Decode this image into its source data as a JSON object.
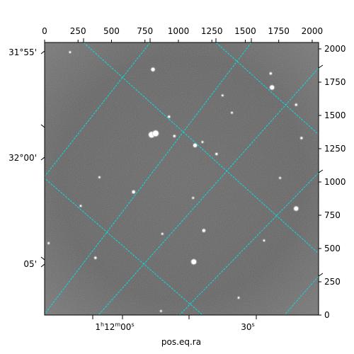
{
  "chart_data": {
    "type": "image",
    "title": "",
    "xlabel": "pos.eq.ra",
    "ylabel": "",
    "pixel_axes": {
      "top_ticks": [
        0,
        250,
        500,
        750,
        1000,
        1250,
        1500,
        1750,
        2000
      ],
      "right_ticks": [
        0,
        250,
        500,
        750,
        1000,
        1250,
        1500,
        1750,
        2000
      ],
      "xlim": [
        0,
        2048
      ],
      "ylim": [
        0,
        2048
      ]
    },
    "world_axes": {
      "ra_labels": [
        "1h12m00s",
        "30s"
      ],
      "ra_label_parts": [
        {
          "h": "1",
          "m": "12",
          "s": "00"
        },
        {
          "h": "",
          "m": "",
          "s": "30"
        }
      ],
      "dec_labels": [
        "31°55'",
        "32°00'",
        "05'"
      ]
    },
    "grid": true,
    "grid_color": "#00e5e5",
    "image_colormap": "gray",
    "sources": [
      {
        "x": 810,
        "y": 1845,
        "r": 2.5
      },
      {
        "x": 1700,
        "y": 1710,
        "r": 3
      },
      {
        "x": 1690,
        "y": 1815,
        "r": 1.5
      },
      {
        "x": 1880,
        "y": 1580,
        "r": 1.5
      },
      {
        "x": 800,
        "y": 1355,
        "r": 4
      },
      {
        "x": 830,
        "y": 1365,
        "r": 4
      },
      {
        "x": 930,
        "y": 1490,
        "r": 1.5
      },
      {
        "x": 970,
        "y": 1345,
        "r": 1.5
      },
      {
        "x": 1125,
        "y": 1275,
        "r": 2.5
      },
      {
        "x": 1180,
        "y": 1300,
        "r": 1.2
      },
      {
        "x": 1285,
        "y": 1210,
        "r": 1.5
      },
      {
        "x": 1330,
        "y": 1650,
        "r": 1.2
      },
      {
        "x": 1920,
        "y": 1330,
        "r": 1.5
      },
      {
        "x": 665,
        "y": 925,
        "r": 2
      },
      {
        "x": 410,
        "y": 1035,
        "r": 1.2
      },
      {
        "x": 270,
        "y": 820,
        "r": 1.2
      },
      {
        "x": 1190,
        "y": 635,
        "r": 2
      },
      {
        "x": 1880,
        "y": 800,
        "r": 3
      },
      {
        "x": 1115,
        "y": 400,
        "r": 3.5
      },
      {
        "x": 880,
        "y": 610,
        "r": 1.2
      },
      {
        "x": 1640,
        "y": 560,
        "r": 1.2
      },
      {
        "x": 30,
        "y": 540,
        "r": 1.2
      },
      {
        "x": 1760,
        "y": 1030,
        "r": 1.2
      },
      {
        "x": 870,
        "y": 30,
        "r": 1.2
      },
      {
        "x": 1450,
        "y": 130,
        "r": 1.2
      },
      {
        "x": 190,
        "y": 1975,
        "r": 1.2
      },
      {
        "x": 1400,
        "y": 1520,
        "r": 1.2
      },
      {
        "x": 1110,
        "y": 880,
        "r": 1.2
      },
      {
        "x": 380,
        "y": 430,
        "r": 1.5
      }
    ]
  }
}
